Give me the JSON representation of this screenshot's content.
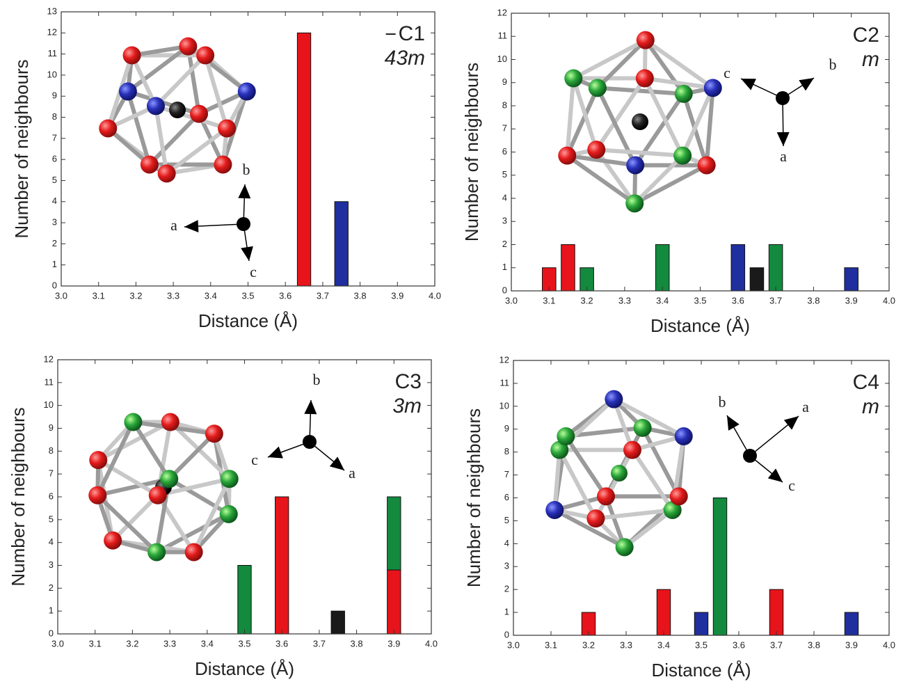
{
  "chart_data": [
    {
      "type": "bar",
      "title": "C1",
      "subtitle": "43m",
      "x_label": "Distance (Å)",
      "y_label": "Number of neighbours",
      "xlim": [
        3.0,
        4.0
      ],
      "xticks": [
        {
          "value": 3,
          "label": "3.0"
        },
        3.1,
        3.2,
        3.3,
        3.4,
        3.5,
        3.6,
        3.7,
        3.8,
        3.9,
        {
          "value": 4,
          "label": "4.0"
        }
      ],
      "ylim": [
        0,
        13
      ],
      "yticks": [
        0,
        1,
        2,
        3,
        4,
        5,
        6,
        7,
        8,
        9,
        10,
        11,
        12,
        13
      ],
      "bars": [
        {
          "x": 3.65,
          "value": 12,
          "color": "#e8141b"
        },
        {
          "x": 3.75,
          "value": 4,
          "color": "#1f2fa0"
        }
      ],
      "axis_letters": [
        "a",
        "b",
        "c"
      ]
    },
    {
      "type": "bar",
      "title": "C2",
      "subtitle": "m",
      "x_label": "Distance (Å)",
      "y_label": "Number of neighbours",
      "xlim": [
        3.0,
        4.0
      ],
      "xticks": [
        {
          "value": 3,
          "label": "3.0"
        },
        3.1,
        3.2,
        3.3,
        3.4,
        3.5,
        3.6,
        3.7,
        3.8,
        3.9,
        {
          "value": 4,
          "label": "4.0"
        }
      ],
      "ylim": [
        0,
        12
      ],
      "yticks": [
        0,
        1,
        2,
        3,
        4,
        5,
        6,
        7,
        8,
        9,
        10,
        11,
        12
      ],
      "bars": [
        {
          "x": 3.1,
          "value": 1,
          "color": "#e8141b"
        },
        {
          "x": 3.15,
          "value": 2,
          "color": "#e8141b"
        },
        {
          "x": 3.2,
          "value": 1,
          "color": "#138a3e"
        },
        {
          "x": 3.4,
          "value": 2,
          "color": "#138a3e"
        },
        {
          "x": 3.6,
          "value": 2,
          "color": "#1f2fa0"
        },
        {
          "x": 3.65,
          "value": 1,
          "color": "#1a1a1a"
        },
        {
          "x": 3.7,
          "value": 2,
          "color": "#138a3e"
        },
        {
          "x": 3.9,
          "value": 1,
          "color": "#1f2fa0"
        }
      ],
      "axis_letters": [
        "a",
        "b",
        "c"
      ]
    },
    {
      "type": "bar",
      "title": "C3",
      "subtitle": "3m",
      "x_label": "Distance (Å)",
      "y_label": "Number of neighbours",
      "xlim": [
        3.0,
        4.0
      ],
      "xticks": [
        {
          "value": 3,
          "label": "3.0"
        },
        3.1,
        3.2,
        3.3,
        3.4,
        3.5,
        3.6,
        3.7,
        3.8,
        3.9,
        {
          "value": 4,
          "label": "4.0"
        }
      ],
      "ylim": [
        0,
        12
      ],
      "yticks": [
        0,
        1,
        2,
        3,
        4,
        5,
        6,
        7,
        8,
        9,
        10,
        11,
        12
      ],
      "bars": [
        {
          "x": 3.5,
          "value": 3,
          "color": "#138a3e"
        },
        {
          "x": 3.6,
          "value": 6,
          "color": "#e8141b"
        },
        {
          "x": 3.75,
          "value": 1,
          "color": "#1a1a1a"
        },
        {
          "x": 3.9,
          "value": 2.8,
          "color": "#e8141b"
        },
        {
          "x": 3.9,
          "value": 3.2,
          "color": "#138a3e"
        }
      ],
      "axis_letters": [
        "a",
        "b",
        "c"
      ]
    },
    {
      "type": "bar",
      "title": "C4",
      "subtitle": "m",
      "x_label": "Distance (Å)",
      "y_label": "Number of neighbours",
      "xlim": [
        3.0,
        4.0
      ],
      "xticks": [
        {
          "value": 3,
          "label": "3.0"
        },
        3.1,
        3.2,
        3.3,
        3.4,
        3.5,
        3.6,
        3.7,
        3.8,
        3.9,
        {
          "value": 4,
          "label": "4.0"
        }
      ],
      "ylim": [
        0,
        12
      ],
      "yticks": [
        0,
        1,
        2,
        3,
        4,
        5,
        6,
        7,
        8,
        9,
        10,
        11,
        12
      ],
      "bars": [
        {
          "x": 3.2,
          "value": 1,
          "color": "#e8141b"
        },
        {
          "x": 3.4,
          "value": 2,
          "color": "#e8141b"
        },
        {
          "x": 3.5,
          "value": 1,
          "color": "#1f2fa0"
        },
        {
          "x": 3.55,
          "value": 6,
          "color": "#138a3e"
        },
        {
          "x": 3.7,
          "value": 2,
          "color": "#e8141b"
        },
        {
          "x": 3.9,
          "value": 1,
          "color": "#1f2fa0"
        }
      ],
      "axis_letters": [
        "a",
        "b",
        "c"
      ]
    }
  ]
}
